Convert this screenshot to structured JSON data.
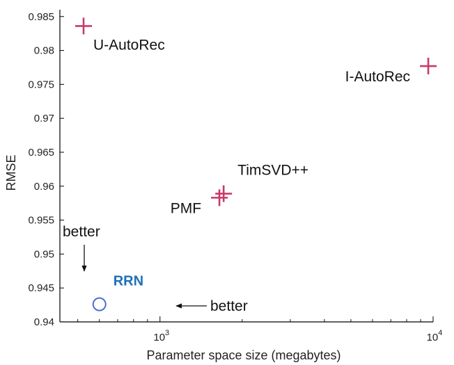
{
  "chart_data": {
    "type": "scatter",
    "xlabel": "Parameter space size (megabytes)",
    "ylabel": "RMSE",
    "x_scale": "log",
    "xlim": [
      430,
      10000
    ],
    "ylim": [
      0.94,
      0.986
    ],
    "x_ticks": [
      {
        "value": 1000,
        "base": "10",
        "exp": "3"
      },
      {
        "value": 10000,
        "base": "10",
        "exp": "4"
      }
    ],
    "y_ticks": [
      "0.94",
      "0.945",
      "0.95",
      "0.955",
      "0.96",
      "0.965",
      "0.97",
      "0.975",
      "0.98",
      "0.985"
    ],
    "grid": false,
    "points": [
      {
        "label": "U-AutoRec",
        "x": 525,
        "y": 0.9836,
        "marker": "plus",
        "color": "#c8396a",
        "label_anchor": "below-right"
      },
      {
        "label": "I-AutoRec",
        "x": 9600,
        "y": 0.9777,
        "marker": "plus",
        "color": "#c8396a",
        "label_anchor": "below-left"
      },
      {
        "label": "TimSVD++",
        "x": 1710,
        "y": 0.9589,
        "marker": "plus",
        "color": "#c8396a",
        "label_anchor": "above-right"
      },
      {
        "label": "PMF",
        "x": 1650,
        "y": 0.9583,
        "marker": "plus",
        "color": "#c8396a",
        "label_anchor": "below-left"
      },
      {
        "label": "RRN",
        "x": 600,
        "y": 0.9426,
        "marker": "circle",
        "color": "#4a6fd6",
        "label_color": "#1f6fb8",
        "label_bold": true,
        "label_anchor": "above-right"
      }
    ],
    "annotations": [
      {
        "text": "better",
        "arrow": "down"
      },
      {
        "text": "better",
        "arrow": "left"
      }
    ]
  }
}
